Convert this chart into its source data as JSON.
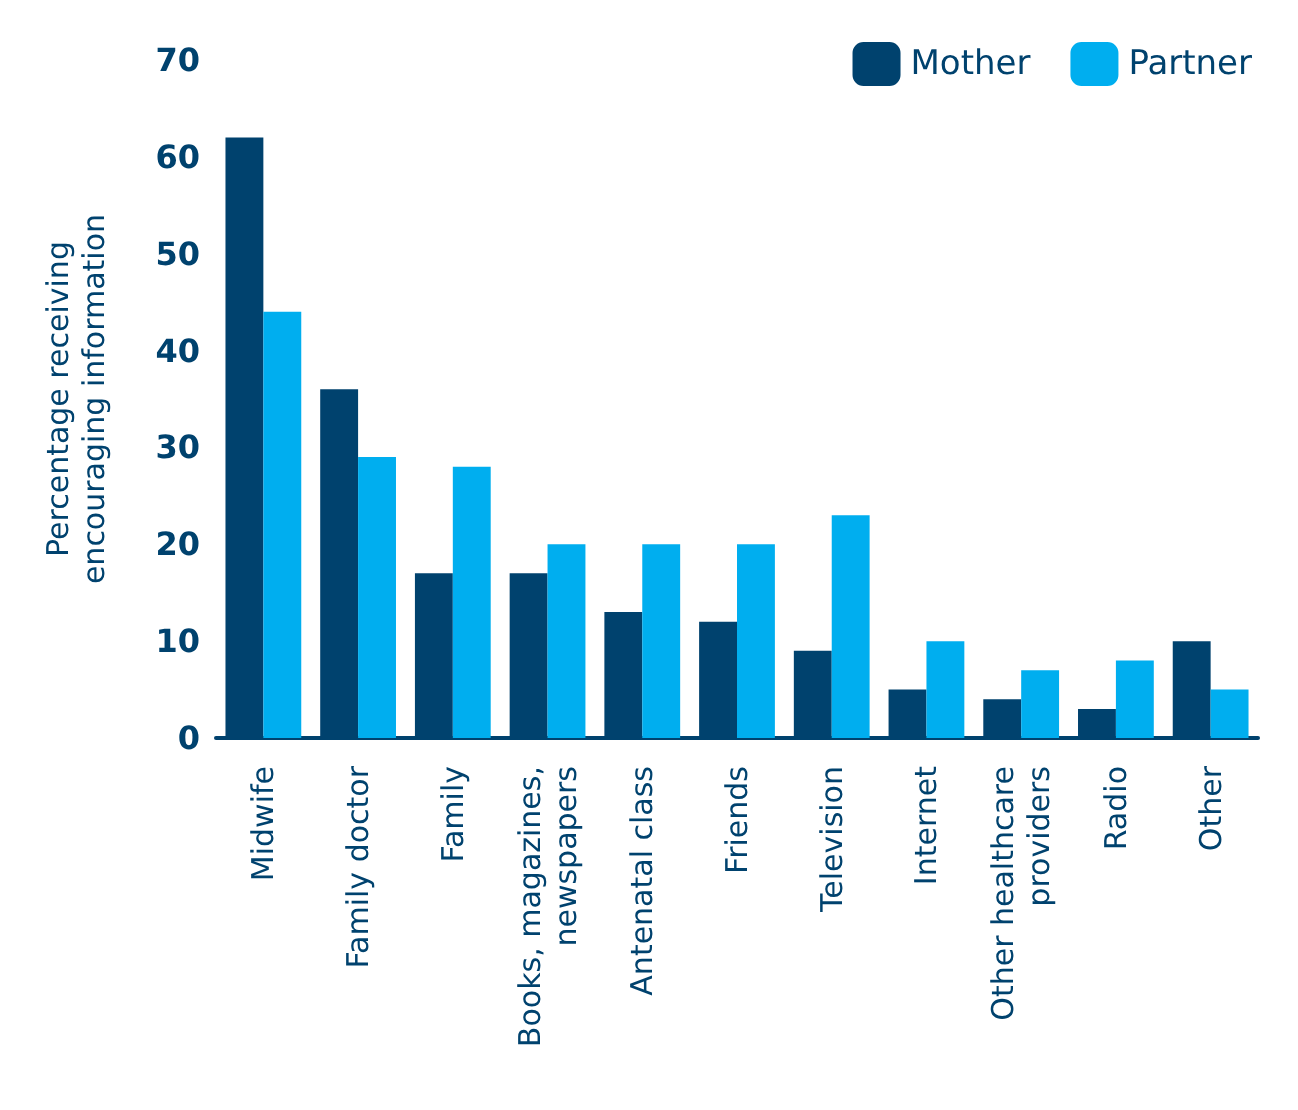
{
  "chart_data": {
    "type": "bar",
    "ylabel": "Percentage receiving\nencouraging information",
    "categories": [
      "Midwife",
      "Family doctor",
      "Family",
      "Books, magazines,\nnewspapers",
      "Antenatal class",
      "Friends",
      "Television",
      "Internet",
      "Other healthcare\nproviders",
      "Radio",
      "Other"
    ],
    "series": [
      {
        "name": "Mother",
        "color": "#00426e",
        "values": [
          62,
          36,
          17,
          17,
          13,
          12,
          9,
          5,
          4,
          3,
          10
        ]
      },
      {
        "name": "Partner",
        "color": "#00aeef",
        "values": [
          44,
          29,
          28,
          20,
          20,
          20,
          23,
          10,
          7,
          8,
          5
        ]
      }
    ],
    "ylim": [
      0,
      70
    ],
    "yticks": [
      0,
      10,
      20,
      30,
      40,
      50,
      60,
      70
    ],
    "grid": false,
    "legend": "top right"
  }
}
